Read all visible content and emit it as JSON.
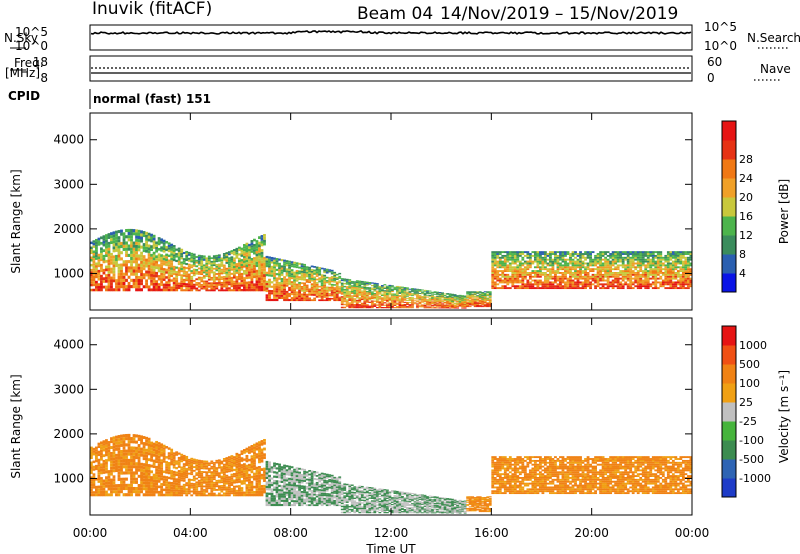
{
  "header": {
    "station": "Inuvik (fitACF)",
    "beam": "Beam 04",
    "dates": "14/Nov/2019 – 15/Nov/2019"
  },
  "mini_panels": {
    "nsky_label": "N.Sky",
    "nsearch_label": "N.Search",
    "nsky_ticks": [
      "10^5",
      "10^0"
    ],
    "nsearch_ticks": [
      "10^5",
      "10^0"
    ],
    "freq_label": "Freq.",
    "freq_unit": "[MHz]",
    "freq_ticks": [
      "18",
      "8"
    ],
    "nave_label": "Nave",
    "nave_ticks": [
      "60",
      "0"
    ],
    "cpid_label": "CPID",
    "cpid_value": "normal (fast) 151"
  },
  "chart_data": [
    {
      "type": "heatmap",
      "title": "",
      "xlabel": "",
      "ylabel": "Slant Range [km]",
      "x_ticks": [
        "00:00",
        "04:00",
        "08:00",
        "12:00",
        "16:00",
        "20:00",
        "00:00"
      ],
      "y_ticks": [
        1000,
        2000,
        3000,
        4000
      ],
      "ylim": [
        180,
        4600
      ],
      "xlim_hours": [
        0,
        24
      ],
      "colorbar": {
        "label": "Power [dB]",
        "ticks": [
          "4",
          "8",
          "12",
          "16",
          "20",
          "24",
          "28"
        ],
        "colors": [
          "#0a14e6",
          "#2a5fb0",
          "#3a8c5c",
          "#4cb44c",
          "#c8c83c",
          "#f0a028",
          "#f07814",
          "#e63214",
          "#e61414"
        ]
      }
    },
    {
      "type": "heatmap",
      "title": "",
      "xlabel": "Time UT",
      "ylabel": "Slant Range [km]",
      "x_ticks": [
        "00:00",
        "04:00",
        "08:00",
        "12:00",
        "16:00",
        "20:00",
        "00:00"
      ],
      "y_ticks": [
        1000,
        2000,
        3000,
        4000
      ],
      "ylim": [
        180,
        4600
      ],
      "xlim_hours": [
        0,
        24
      ],
      "colorbar": {
        "label": "Velocity [m s⁻¹]",
        "ticks": [
          "1000",
          "500",
          "100",
          "25",
          "-25",
          "-100",
          "-500",
          "-1000"
        ],
        "colors": [
          "#1e3cc8",
          "#2e64b4",
          "#3c8c50",
          "#46b43c",
          "#c0c0c0",
          "#f0a014",
          "#f08214",
          "#f05014",
          "#e61414"
        ]
      }
    }
  ]
}
